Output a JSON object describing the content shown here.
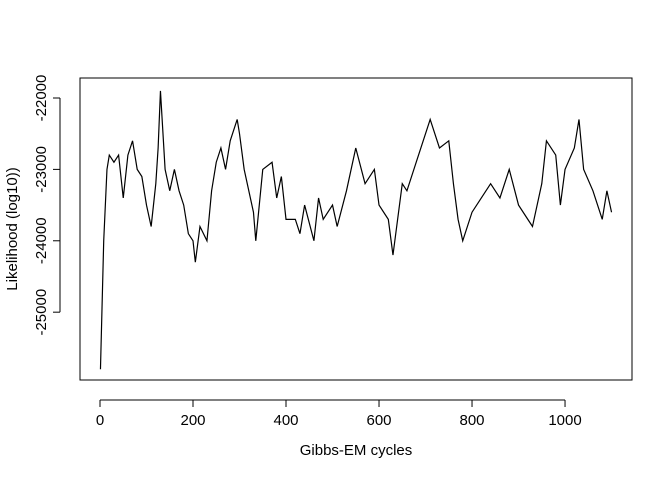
{
  "chart_data": {
    "type": "line",
    "x_label": "Gibbs-EM cycles",
    "y_label": "Likelihood (log10))",
    "x": [
      1,
      8,
      15,
      20,
      30,
      40,
      50,
      60,
      70,
      80,
      90,
      100,
      110,
      120,
      125,
      130,
      140,
      150,
      160,
      170,
      180,
      190,
      200,
      205,
      215,
      230,
      240,
      250,
      260,
      270,
      280,
      295,
      300,
      310,
      330,
      335,
      350,
      370,
      380,
      390,
      400,
      420,
      430,
      440,
      460,
      470,
      480,
      500,
      510,
      530,
      550,
      570,
      590,
      600,
      620,
      630,
      650,
      660,
      680,
      700,
      710,
      730,
      750,
      760,
      770,
      780,
      800,
      820,
      840,
      860,
      880,
      900,
      920,
      930,
      950,
      960,
      980,
      990,
      1000,
      1020,
      1030,
      1040,
      1060,
      1080,
      1090,
      1100
    ],
    "series": [
      {
        "color": "#000000",
        "values": [
          -25800,
          -24000,
          -23000,
          -22800,
          -22900,
          -22800,
          -23400,
          -22800,
          -22600,
          -23000,
          -23100,
          -23500,
          -23800,
          -23200,
          -22700,
          -21900,
          -23000,
          -23300,
          -23000,
          -23300,
          -23500,
          -23900,
          -24000,
          -24300,
          -23800,
          -24000,
          -23300,
          -22900,
          -22700,
          -23000,
          -22600,
          -22300,
          -22500,
          -23000,
          -23600,
          -24000,
          -23000,
          -22900,
          -23400,
          -23100,
          -23700,
          -23700,
          -23900,
          -23500,
          -24000,
          -23400,
          -23700,
          -23500,
          -23800,
          -23300,
          -22700,
          -23200,
          -23000,
          -23500,
          -23700,
          -24200,
          -23200,
          -23300,
          -22900,
          -22500,
          -22300,
          -22700,
          -22600,
          -23200,
          -23700,
          -24000,
          -23600,
          -23400,
          -23200,
          -23400,
          -23000,
          -23500,
          -23700,
          -23800,
          -23200,
          -22600,
          -22800,
          -23500,
          -23000,
          -22700,
          -22300,
          -23000,
          -23300,
          -23700,
          -23300,
          -23600
        ]
      }
    ],
    "xlim": [
      -43,
      1144
    ],
    "ylim": [
      -25950,
      -21720
    ],
    "xticks": [
      0,
      200,
      400,
      600,
      800,
      1000
    ],
    "yticks": [
      -25000,
      -24000,
      -23000,
      -22000
    ]
  }
}
